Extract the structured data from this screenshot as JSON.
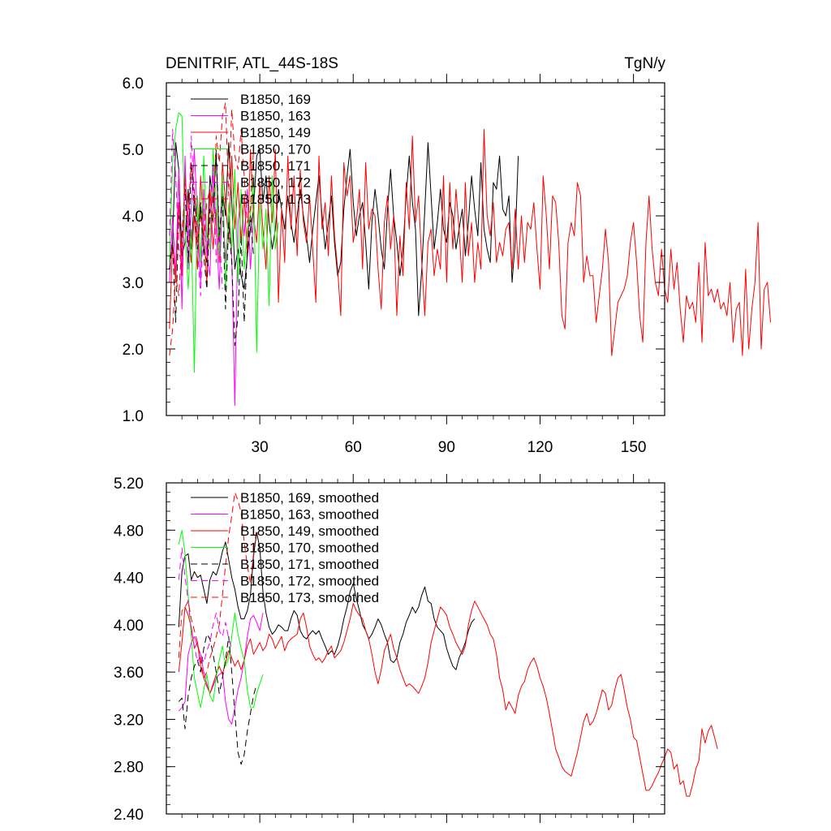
{
  "chart_data": [
    {
      "type": "line",
      "title": "DENITRIF, ATL_44S-18S",
      "units": "TgN/y",
      "xlim": [
        0,
        160
      ],
      "ylim": [
        1.0,
        6.0
      ],
      "yticks": [
        1.0,
        2.0,
        3.0,
        4.0,
        5.0,
        6.0
      ],
      "ytick_labels": [
        "1.0",
        "2.0",
        "3.0",
        "4.0",
        "5.0",
        "6.0"
      ],
      "xticks": [
        30,
        60,
        90,
        120,
        150
      ],
      "xtick_labels": [
        "30",
        "60",
        "90",
        "120",
        "150"
      ],
      "legend_placement": "top-left",
      "series": [
        {
          "name": "B1850, 169",
          "color": "#000000",
          "dash": "solid",
          "values": [
            3.3,
            3.6,
            5.1,
            4.7,
            3.4,
            3.6,
            4.4,
            3.5,
            4.3,
            3.9,
            4.1,
            3.5,
            3.3,
            4.6,
            4.2,
            4.9,
            3.6,
            4.4,
            4.0,
            5.1,
            4.2,
            3.2,
            3.5,
            3.1,
            2.9,
            3.4,
            3.8,
            4.1,
            4.9,
            5.0,
            4.2,
            4.6,
            3.9,
            3.5,
            3.8,
            4.4,
            4.1,
            3.8,
            4.3,
            3.9,
            3.6,
            4.0,
            4.4,
            4.0,
            3.7,
            3.3,
            3.8,
            4.2,
            4.6,
            4.0,
            3.5,
            3.9,
            4.3,
            3.6,
            3.1,
            3.3,
            4.1,
            4.6,
            5.0,
            4.2,
            3.7,
            4.0,
            4.2,
            3.6,
            2.9,
            3.9,
            4.4,
            4.0,
            3.5,
            3.2,
            4.1,
            4.7,
            4.0,
            3.6,
            3.1,
            3.5,
            4.3,
            4.9,
            4.2,
            3.8,
            2.5,
            3.2,
            4.1,
            5.1,
            4.3,
            3.5,
            3.9,
            4.4,
            3.8,
            3.6,
            4.2,
            4.0,
            3.5,
            3.8,
            4.1,
            3.4,
            3.9,
            4.6,
            4.1,
            3.7,
            4.8,
            3.8,
            3.5,
            3.3,
            4.5,
            4.4,
            4.9,
            4.1,
            4.0,
            4.3,
            3.0,
            3.6,
            4.9
          ]
        },
        {
          "name": "B1850, 163",
          "color": "#ff00ff",
          "dash": "solid",
          "values": [
            3.0,
            4.0,
            3.1,
            4.7,
            2.6,
            4.9,
            3.2,
            4.1,
            5.0,
            3.9,
            3.0,
            4.4,
            3.4,
            3.1,
            4.7,
            3.8,
            2.9,
            4.4,
            3.3,
            4.0,
            3.4,
            1.15,
            3.9,
            4.3,
            3.7,
            4.4,
            3.2,
            4.0
          ]
        },
        {
          "name": "B1850, 149",
          "color": "#ff0000",
          "dash": "solid",
          "values": [
            2.3,
            3.6,
            3.0,
            4.2,
            3.1,
            4.6,
            3.9,
            3.3,
            4.0,
            3.2,
            4.6,
            3.8,
            3.0,
            4.4,
            3.5,
            4.1,
            3.3,
            4.8,
            4.2,
            3.6,
            4.9,
            3.8,
            4.5,
            3.6,
            4.3,
            3.4,
            5.0,
            4.0,
            3.6,
            4.5,
            3.8,
            3.2,
            4.6,
            3.9,
            5.0,
            2.7,
            4.1,
            3.3,
            4.9,
            3.8,
            4.6,
            3.4,
            4.7,
            3.9,
            3.6,
            4.3,
            3.5,
            2.7,
            4.9,
            3.8,
            4.2,
            3.4,
            4.6,
            3.7,
            3.2,
            2.5,
            4.8,
            4.3,
            4.6,
            3.6,
            3.9,
            4.4,
            3.2,
            4.8,
            3.8,
            4.1,
            4.0,
            3.2,
            2.6,
            3.9,
            4.3,
            3.5,
            4.0,
            2.5,
            3.7,
            3.1,
            4.5,
            3.8,
            5.2,
            3.9,
            4.3,
            3.3,
            2.5,
            3.6,
            3.8,
            3.1,
            3.5,
            3.2,
            4.6,
            3.0,
            4.5,
            3.5,
            4.4,
            3.8,
            3.0,
            4.5,
            3.4,
            3.9,
            3.0,
            3.6,
            3.2,
            5.3,
            4.0,
            3.7,
            4.2,
            3.3,
            3.6,
            3.4,
            3.8,
            3.9,
            3.2,
            4.1,
            3.2,
            4.0,
            3.3,
            3.9,
            3.8,
            4.2,
            3.5,
            2.9,
            4.6,
            4.0,
            3.2,
            4.3,
            4.2,
            3.6,
            2.5,
            2.3,
            3.6,
            3.9,
            3.7,
            4.5,
            4.3,
            3.0,
            3.4,
            3.1,
            3.1,
            2.4,
            2.8,
            3.2,
            3.8,
            3.3,
            1.9,
            2.3,
            2.7,
            2.8,
            2.9,
            3.1,
            3.6,
            3.9,
            3.3,
            2.5,
            2.1,
            3.6,
            4.3,
            3.5,
            3.0,
            2.8,
            3.5,
            2.9,
            2.7,
            3.5,
            2.9,
            3.3,
            2.6,
            2.1,
            2.8,
            2.6,
            2.7,
            2.4,
            3.3,
            2.1,
            3.6,
            2.8,
            2.9,
            2.7,
            2.9,
            2.6,
            2.7,
            2.5,
            3.0,
            2.1,
            2.6,
            2.7,
            1.9,
            3.2,
            2.0,
            2.6,
            3.0,
            3.9,
            2.0,
            2.9,
            3.0,
            2.4
          ]
        },
        {
          "name": "B1850, 170",
          "color": "#00ff00",
          "dash": "solid",
          "values": [
            3.3,
            4.8,
            5.3,
            5.55,
            5.5,
            3.8,
            2.9,
            3.8,
            1.65,
            4.3,
            3.3,
            4.9,
            3.7,
            3.5,
            5.0,
            4.2,
            3.4,
            4.6,
            2.9,
            4.2,
            3.5,
            4.7,
            3.0,
            4.4,
            3.2,
            3.8,
            4.0,
            4.6,
            1.95,
            4.2,
            3.5,
            4.1,
            2.65,
            4.6,
            3.5,
            3.9
          ]
        },
        {
          "name": "B1850, 171",
          "color": "#000000",
          "dash": "dashed",
          "values": [
            3.2,
            3.6,
            2.4,
            4.0,
            3.7,
            4.4,
            3.3,
            4.8,
            4.1,
            3.5,
            4.2,
            3.4,
            2.9,
            4.1,
            3.9,
            5.0,
            3.7,
            4.3,
            2.6,
            3.9,
            3.3,
            2.05,
            2.5,
            3.7,
            2.4,
            3.5,
            4.0,
            3.4
          ]
        },
        {
          "name": "B1850, 172",
          "color": "#ff00ff",
          "dash": "dashed",
          "values": [
            3.7,
            5.3,
            4.6,
            3.5,
            3.2,
            4.8,
            3.6,
            5.2,
            4.3,
            3.5,
            2.8,
            4.1,
            3.4,
            3.9,
            4.8,
            3.3,
            3.8,
            2.9
          ]
        },
        {
          "name": "B1850, 173",
          "color": "#ff0000",
          "dash": "dashed",
          "values": [
            1.9,
            2.3,
            3.1,
            2.8,
            3.6,
            4.5,
            4.0,
            4.8,
            4.4,
            3.6,
            4.0,
            3.7,
            4.2,
            4.4,
            3.9,
            5.2,
            4.8,
            5.5,
            5.7,
            4.3,
            5.6,
            4.9,
            4.7,
            5.3,
            4.6,
            3.9,
            4.1,
            5.0
          ]
        }
      ]
    },
    {
      "type": "line",
      "title": "",
      "xlim": [
        0,
        160
      ],
      "ylim": [
        2.4,
        5.2
      ],
      "yticks": [
        2.4,
        2.8,
        3.2,
        3.6,
        4.0,
        4.4,
        4.8,
        5.2
      ],
      "ytick_labels": [
        "2.40",
        "2.80",
        "3.20",
        "3.60",
        "4.00",
        "4.40",
        "4.80",
        "5.20"
      ],
      "xticks": [
        30,
        60,
        90,
        120,
        150
      ],
      "legend_placement": "top-left",
      "series": [
        {
          "name": "B1850, 169, smoothed",
          "color": "#000000",
          "dash": "solid",
          "x_start": 4,
          "values": [
            3.98,
            4.45,
            4.58,
            4.6,
            4.38,
            4.45,
            4.4,
            4.42,
            4.3,
            4.18,
            4.38,
            4.45,
            4.42,
            4.5,
            4.62,
            4.7,
            4.55,
            4.4,
            4.3,
            4.15,
            4.05,
            4.05,
            4.12,
            4.25,
            4.58,
            4.78,
            4.65,
            4.28,
            4.1,
            3.98,
            3.92,
            3.95,
            4.0,
            3.98,
            3.95,
            3.95,
            4.05,
            4.12,
            4.08,
            3.95,
            3.9,
            3.88,
            3.92,
            3.95,
            3.92,
            3.95,
            3.88,
            3.82,
            3.75,
            3.78,
            3.75,
            3.82,
            3.92,
            4.05,
            4.15,
            4.28,
            4.35,
            4.22,
            4.12,
            4.0,
            3.95,
            3.88,
            3.92,
            3.98,
            4.05,
            4.0,
            3.92,
            3.85,
            3.7,
            3.68,
            3.72,
            3.85,
            3.92,
            4.02,
            4.08,
            4.15,
            4.1,
            4.15,
            4.25,
            4.32,
            4.2,
            4.18,
            4.05,
            3.98,
            3.95,
            3.92,
            3.8,
            3.72,
            3.65,
            3.62,
            3.72,
            3.78,
            3.85,
            3.95,
            4.02,
            4.05
          ]
        },
        {
          "name": "B1850, 163, smoothed",
          "color": "#ff00ff",
          "dash": "solid",
          "x_start": 4,
          "values": [
            3.27,
            3.3,
            3.35,
            3.75,
            3.85,
            3.9,
            3.82,
            3.75,
            3.6,
            3.5,
            3.42,
            3.48,
            3.55,
            3.58,
            3.6,
            3.35,
            3.2,
            3.16,
            3.3,
            3.45,
            3.55,
            3.7,
            3.9,
            4.05,
            4.08,
            4.02,
            3.95,
            4.1
          ]
        },
        {
          "name": "B1850, 149, smoothed",
          "color": "#ff0000",
          "dash": "solid",
          "x_start": 4,
          "values": [
            3.6,
            3.85,
            4.15,
            4.08,
            3.98,
            3.8,
            3.85,
            3.65,
            3.55,
            3.48,
            3.42,
            3.5,
            3.58,
            3.65,
            3.58,
            3.68,
            3.78,
            3.72,
            3.65,
            3.7,
            3.62,
            3.7,
            3.82,
            3.88,
            3.75,
            3.8,
            3.85,
            3.78,
            3.82,
            3.92,
            3.88,
            3.8,
            3.85,
            3.9,
            3.78,
            3.85,
            3.88,
            3.9,
            3.92,
            4.05,
            4.1,
            3.98,
            3.82,
            3.75,
            3.7,
            3.72,
            3.68,
            3.72,
            3.78,
            3.82,
            3.72,
            3.75,
            3.78,
            3.85,
            3.95,
            4.05,
            4.18,
            4.12,
            4.08,
            4.05,
            3.95,
            3.88,
            3.75,
            3.6,
            3.5,
            3.62,
            3.78,
            3.85,
            3.92,
            3.8,
            3.72,
            3.62,
            3.55,
            3.48,
            3.5,
            3.48,
            3.45,
            3.42,
            3.48,
            3.55,
            3.68,
            3.85,
            3.95,
            4.05,
            4.15,
            4.12,
            4.08,
            3.98,
            3.92,
            3.85,
            3.8,
            3.75,
            3.82,
            4.0,
            4.12,
            4.2,
            4.15,
            4.1,
            4.05,
            4.0,
            3.92,
            3.88,
            3.75,
            3.55,
            3.45,
            3.28,
            3.35,
            3.3,
            3.25,
            3.4,
            3.48,
            3.52,
            3.62,
            3.68,
            3.72,
            3.65,
            3.55,
            3.48,
            3.38,
            3.25,
            3.1,
            2.95,
            2.88,
            2.8,
            2.76,
            2.74,
            2.72,
            2.82,
            2.92,
            3.05,
            3.18,
            3.25,
            3.15,
            3.18,
            3.25,
            3.35,
            3.45,
            3.42,
            3.28,
            3.32,
            3.45,
            3.55,
            3.58,
            3.45,
            3.3,
            3.2,
            3.05,
            3.02,
            2.88,
            2.74,
            2.6,
            2.6,
            2.64,
            2.7,
            2.75,
            2.82,
            2.88,
            2.95,
            2.92,
            2.78,
            2.82,
            2.65,
            2.68,
            2.55,
            2.55,
            2.65,
            2.78,
            2.85,
            3.12,
            3.0,
            3.1,
            3.15,
            3.05,
            2.95
          ]
        },
        {
          "name": "B1850, 170, smoothed",
          "color": "#00ff00",
          "dash": "solid",
          "x_start": 4,
          "values": [
            4.68,
            4.8,
            4.6,
            4.25,
            3.9,
            3.55,
            3.42,
            3.3,
            3.45,
            3.58,
            3.4,
            3.35,
            3.55,
            3.7,
            3.82,
            3.65,
            3.72,
            3.9,
            4.1,
            3.92,
            3.8,
            3.7,
            3.45,
            3.3,
            3.3,
            3.42,
            3.5,
            3.58
          ]
        },
        {
          "name": "B1850, 171, smoothed",
          "color": "#000000",
          "dash": "dashed",
          "x_start": 4,
          "values": [
            3.35,
            3.38,
            3.12,
            3.4,
            3.55,
            3.65,
            3.7,
            3.6,
            3.8,
            3.92,
            3.88,
            3.75,
            3.6,
            3.42,
            3.55,
            3.7,
            3.9,
            3.6,
            3.25,
            2.92,
            2.82,
            2.9,
            3.1,
            3.25,
            3.4,
            3.5
          ]
        },
        {
          "name": "B1850, 172, smoothed",
          "color": "#ff00ff",
          "dash": "dashed",
          "x_start": 4,
          "values": [
            4.38,
            4.65,
            4.4,
            4.2,
            3.95,
            3.82,
            3.68,
            3.75,
            3.68,
            3.78,
            3.85,
            4.0,
            4.1,
            3.95,
            3.9,
            4.02,
            3.88,
            3.8
          ]
        },
        {
          "name": "B1850, 173, smoothed",
          "color": "#ff0000",
          "dash": "dashed",
          "x_start": 4,
          "values": [
            3.72,
            4.12,
            4.15,
            4.2,
            4.05,
            3.95,
            3.85,
            3.7,
            3.55,
            3.6,
            3.72,
            3.8,
            3.9,
            4.0,
            4.25,
            4.5,
            4.75,
            4.92,
            5.12,
            5.05,
            4.95,
            4.7,
            4.5,
            4.35,
            4.6,
            4.82
          ]
        }
      ]
    }
  ]
}
